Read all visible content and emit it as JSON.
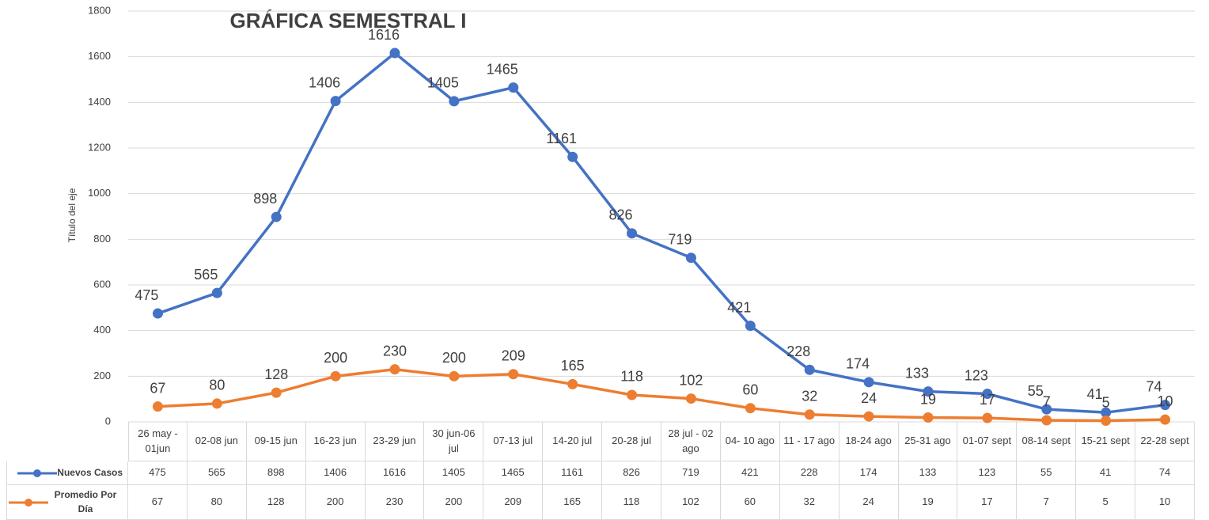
{
  "chart_data": {
    "type": "line",
    "title": "GRÁFICA SEMESTRAL I",
    "y_label": "Título del eje",
    "categories": [
      "26 may - 01jun",
      "02-08 jun",
      "09-15 jun",
      "16-23 jun",
      "23-29 jun",
      "30 jun-06 jul",
      "07-13 jul",
      "14-20 jul",
      "20-28 jul",
      "28 jul - 02 ago",
      "04- 10 ago",
      "11 - 17 ago",
      "18-24 ago",
      "25-31 ago",
      "01-07 sept",
      "08-14 sept",
      "15-21 sept",
      "22-28 sept"
    ],
    "series": [
      {
        "name": "Nuevos Casos",
        "color": "#4472c4",
        "values": [
          475,
          565,
          898,
          1406,
          1616,
          1405,
          1465,
          1161,
          826,
          719,
          421,
          228,
          174,
          133,
          123,
          55,
          41,
          74
        ]
      },
      {
        "name": "Promedio Por Día",
        "color": "#ed7d31",
        "values": [
          67,
          80,
          128,
          200,
          230,
          200,
          209,
          165,
          118,
          102,
          60,
          32,
          24,
          19,
          17,
          7,
          5,
          10
        ]
      }
    ],
    "ylim": [
      0,
      1800
    ],
    "yticks": [
      0,
      200,
      400,
      600,
      800,
      1000,
      1200,
      1400,
      1600,
      1800
    ],
    "grid": true
  }
}
